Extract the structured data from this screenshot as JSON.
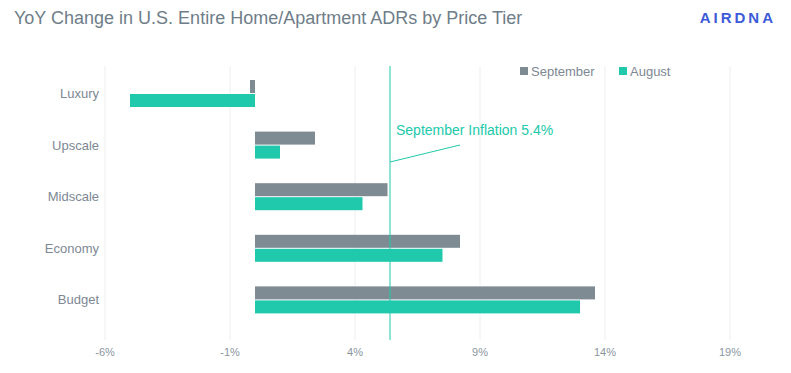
{
  "chart_data": {
    "type": "bar",
    "orientation": "horizontal",
    "title": "YoY Change in U.S. Entire Home/Apartment ADRs by Price Tier",
    "logo": "AIRDNA",
    "categories": [
      "Luxury",
      "Upscale",
      "Midscale",
      "Economy",
      "Budget"
    ],
    "series": [
      {
        "name": "September",
        "color": "#7e8b93",
        "values": [
          -0.2,
          2.4,
          5.3,
          8.2,
          13.6
        ]
      },
      {
        "name": "August",
        "color": "#20c9ab",
        "values": [
          -5.0,
          1.0,
          4.3,
          7.5,
          13.0
        ]
      }
    ],
    "xlim": [
      -6,
      19
    ],
    "xticks": [
      {
        "value": -6,
        "label": "-6%"
      },
      {
        "value": -1,
        "label": "-1%"
      },
      {
        "value": 4,
        "label": "4%"
      },
      {
        "value": 9,
        "label": "9%"
      },
      {
        "value": 14,
        "label": "14%"
      },
      {
        "value": 19,
        "label": "19%"
      }
    ],
    "grid": true,
    "legend": "upper right",
    "annotations": [
      {
        "text": "September Inflation 5.4%",
        "value": 5.4,
        "color": "#20c9ab"
      }
    ]
  }
}
